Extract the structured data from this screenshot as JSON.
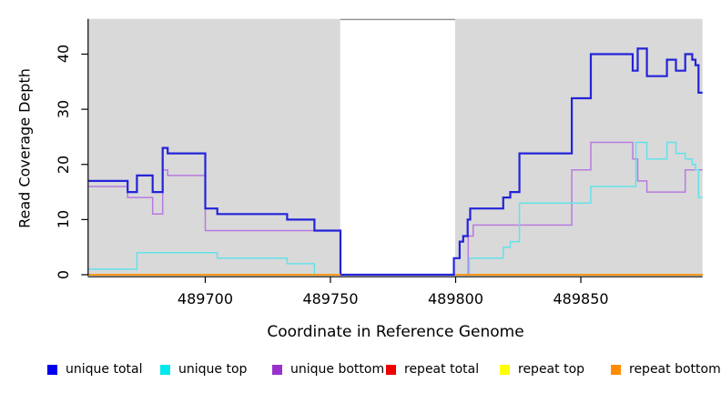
{
  "figure": {
    "x_axis_title": "Coordinate in Reference Genome",
    "y_axis_title": "Read Coverage Depth"
  },
  "chart_data": {
    "type": "line",
    "subtype": "step-coverage-plot",
    "title": "",
    "xlabel": "Coordinate in Reference Genome",
    "ylabel": "Read Coverage Depth",
    "xlim": [
      489653.4,
      489898.6
    ],
    "ylim": [
      -0.25,
      46.4
    ],
    "x_ticks": [
      489700,
      489750,
      489800,
      489850
    ],
    "y_ticks": [
      0,
      10,
      20,
      30,
      40
    ],
    "grid": false,
    "plot_bg": "#D9D9D9",
    "masked_region": {
      "x_start": 489753.9,
      "x_end": 489799.8,
      "color": "#FFFFFF",
      "top_border_color": "#8F8F8F"
    },
    "legend_position": "bottom",
    "series": [
      {
        "name": "unique bottom",
        "color": "#B87BE0",
        "width": 1.5,
        "segments": [
          [
            [
              489653.4,
              16
            ],
            [
              489669,
              14
            ],
            [
              489679,
              11
            ],
            [
              489683,
              19
            ],
            [
              489685,
              18
            ],
            [
              489700,
              8
            ],
            [
              489754,
              0
            ],
            [
              489805,
              7
            ],
            [
              489807,
              9
            ],
            [
              489846.4,
              19
            ],
            [
              489854,
              24
            ],
            [
              489870.7,
              21
            ],
            [
              489872.7,
              17
            ],
            [
              489876.4,
              15
            ],
            [
              489891.7,
              19
            ],
            [
              489898.6,
              19
            ]
          ]
        ]
      },
      {
        "name": "unique top",
        "color": "#63E2EA",
        "width": 1.5,
        "segments": [
          [
            [
              489653.4,
              1
            ],
            [
              489672.7,
              4
            ],
            [
              489704.8,
              3
            ],
            [
              489732.7,
              2
            ],
            [
              489743.6,
              0
            ],
            [
              489805.5,
              3
            ],
            [
              489819,
              5
            ],
            [
              489821.8,
              6
            ],
            [
              489825.5,
              13
            ],
            [
              489854,
              16
            ],
            [
              489872,
              24
            ],
            [
              489876.4,
              21
            ],
            [
              489884.4,
              24
            ],
            [
              489888,
              22
            ],
            [
              489891.7,
              21
            ],
            [
              489894.5,
              20
            ],
            [
              489895.8,
              19
            ],
            [
              489897,
              14
            ],
            [
              489898.6,
              14
            ]
          ]
        ]
      },
      {
        "name": "unique total",
        "color": "#2323D9",
        "width": 2.2,
        "segments": [
          [
            [
              489653.4,
              17
            ],
            [
              489669,
              15
            ],
            [
              489672.7,
              18
            ],
            [
              489679,
              15
            ],
            [
              489683,
              23
            ],
            [
              489685,
              22
            ],
            [
              489700,
              12
            ],
            [
              489704.8,
              11
            ],
            [
              489732.7,
              10
            ],
            [
              489743.6,
              8
            ],
            [
              489754,
              0
            ],
            [
              489799.3,
              3
            ],
            [
              489801.6,
              6
            ],
            [
              489803,
              7
            ],
            [
              489804.8,
              10
            ],
            [
              489805.8,
              12
            ],
            [
              489819,
              14
            ],
            [
              489821.8,
              15
            ],
            [
              489825.5,
              22
            ],
            [
              489846.4,
              32
            ],
            [
              489854,
              40
            ],
            [
              489870.7,
              37
            ],
            [
              489872.7,
              41
            ],
            [
              489876.4,
              36
            ],
            [
              489884.4,
              39
            ],
            [
              489888,
              37
            ],
            [
              489891.7,
              40
            ],
            [
              489894.5,
              39
            ],
            [
              489895.8,
              38
            ],
            [
              489897,
              33
            ],
            [
              489898.6,
              33
            ]
          ]
        ]
      },
      {
        "name": "repeat total",
        "color": "#E02020",
        "width": 1.5,
        "segments": [
          [
            [
              489653.4,
              0
            ],
            [
              489754,
              0
            ]
          ],
          [
            [
              489799.8,
              0
            ],
            [
              489898.6,
              0
            ]
          ]
        ]
      },
      {
        "name": "repeat top",
        "color": "#F5F500",
        "width": 1.5,
        "segments": [
          [
            [
              489653.4,
              0
            ],
            [
              489754,
              0
            ]
          ],
          [
            [
              489799.8,
              0
            ],
            [
              489898.6,
              0
            ]
          ]
        ]
      },
      {
        "name": "repeat bottom",
        "color": "#FF9514",
        "width": 1.8,
        "segments": [
          [
            [
              489653.4,
              0
            ],
            [
              489754,
              0
            ]
          ],
          [
            [
              489799.8,
              0
            ],
            [
              489898.6,
              0
            ]
          ]
        ]
      }
    ]
  },
  "legend": {
    "items": [
      {
        "label": "unique total",
        "swatch_color": "#0000EE"
      },
      {
        "label": "unique top",
        "swatch_color": "#00E8EE"
      },
      {
        "label": "unique bottom",
        "swatch_color": "#9932CC"
      },
      {
        "label": "repeat total",
        "swatch_color": "#EE0000"
      },
      {
        "label": "repeat top",
        "swatch_color": "#FFFF00"
      },
      {
        "label": "repeat bottom",
        "swatch_color": "#FF8C00"
      }
    ]
  }
}
